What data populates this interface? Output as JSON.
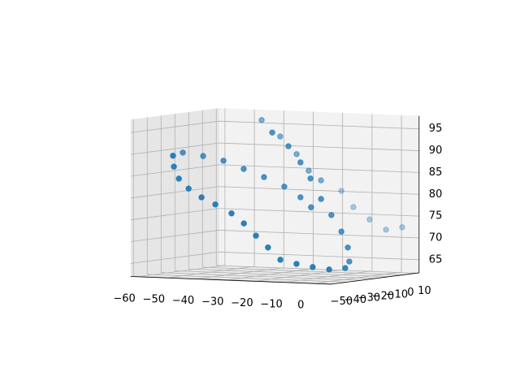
{
  "chart_data": {
    "type": "scatter3d",
    "color": "#1f77b4",
    "grid": true,
    "xlim": [
      -62,
      6
    ],
    "ylim": [
      -52,
      12
    ],
    "zlim": [
      62,
      98
    ],
    "xticks": [
      {
        "value": -60,
        "label": "−60"
      },
      {
        "value": -50,
        "label": "−50"
      },
      {
        "value": -40,
        "label": "−40"
      },
      {
        "value": -30,
        "label": "−30"
      },
      {
        "value": -20,
        "label": "−20"
      },
      {
        "value": -10,
        "label": "−10"
      },
      0
    ],
    "yticks": [
      {
        "value": -50,
        "label": "−50"
      },
      {
        "value": -40,
        "label": "−40"
      },
      {
        "value": -30,
        "label": "−30"
      },
      {
        "value": -20,
        "label": "−20"
      },
      {
        "value": -10,
        "label": "−10"
      },
      0,
      10
    ],
    "zticks": [
      65,
      70,
      75,
      80,
      85,
      90,
      95
    ],
    "x": [
      1.2,
      -4.3,
      -9.9,
      -15.4,
      -19.5,
      -17.0,
      -21.2,
      -25.3,
      -30.9,
      -37.2,
      -24.2,
      -18.7,
      -14.6,
      -11.2,
      -7.6,
      -4.1,
      -0.7,
      1.5,
      2.0,
      5.3,
      2.2,
      -3.4,
      -8.9,
      -14.4,
      -18.6,
      -22.7,
      -26.8,
      -31.0,
      -36.5,
      -41.2,
      -45.6,
      -48.9,
      -50.6,
      -50.9,
      -54.6,
      -47.7,
      -40.8,
      -33.9,
      -27.0,
      -20.1,
      -14.6,
      -11.0
    ],
    "y": [
      10,
      10,
      10,
      10,
      10,
      -10,
      -10,
      -10,
      -10,
      -10,
      -30,
      -30,
      -30,
      -30,
      -30,
      -30,
      -30,
      -30,
      -30,
      -40,
      -45,
      -45,
      -45,
      -45,
      -45,
      -45,
      -45,
      -45,
      -45,
      -45,
      -45,
      -45,
      -45,
      -45,
      -30,
      -30,
      -30,
      -30,
      -30,
      -30,
      -30,
      -30
    ],
    "z": [
      72.4,
      71.7,
      73.9,
      76.6,
      80.2,
      83.5,
      85.6,
      89.3,
      93.2,
      96.8,
      95.1,
      92.1,
      88.5,
      84.9,
      80.3,
      76.7,
      73.0,
      69.4,
      66.2,
      65.2,
      65.0,
      65.4,
      66.0,
      66.8,
      69.5,
      72.1,
      74.8,
      77.0,
      78.9,
      80.4,
      82.3,
      84.5,
      87.2,
      89.7,
      89.7,
      89.1,
      88.2,
      86.5,
      84.8,
      82.8,
      80.5,
      78.3
    ]
  }
}
